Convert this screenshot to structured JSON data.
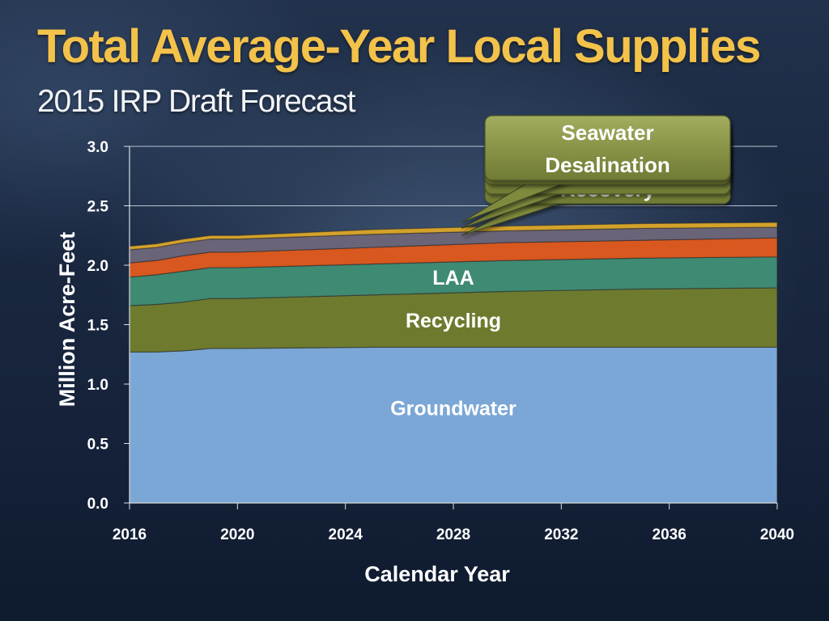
{
  "slide": {
    "title": "Total Average-Year Local Supplies",
    "subtitle": "2015 IRP Draft Forecast"
  },
  "chart_data": {
    "type": "area",
    "stacked": true,
    "xlabel": "Calendar Year",
    "ylabel": "Million Acre-Feet",
    "x": [
      2016,
      2017,
      2018,
      2019,
      2020,
      2025,
      2030,
      2035,
      2040
    ],
    "xticks": [
      "2016",
      "2020",
      "2024",
      "2028",
      "2032",
      "2036",
      "2040"
    ],
    "yticks": [
      "0.0",
      "0.5",
      "1.0",
      "1.5",
      "2.0",
      "2.5",
      "3.0"
    ],
    "ylim": [
      0,
      3.0
    ],
    "grid": true,
    "series": [
      {
        "name": "Groundwater",
        "color": "#7ba7d6",
        "values": [
          1.27,
          1.27,
          1.28,
          1.3,
          1.3,
          1.31,
          1.31,
          1.31,
          1.31
        ]
      },
      {
        "name": "Recycling",
        "color": "#6e7b2e",
        "values": [
          0.39,
          0.4,
          0.41,
          0.42,
          0.42,
          0.44,
          0.47,
          0.49,
          0.5
        ]
      },
      {
        "name": "LAA",
        "color": "#3f8a73",
        "values": [
          0.24,
          0.25,
          0.26,
          0.26,
          0.26,
          0.26,
          0.26,
          0.26,
          0.26
        ]
      },
      {
        "name": "",
        "color": "#d8581f",
        "values": [
          0.12,
          0.12,
          0.13,
          0.13,
          0.13,
          0.14,
          0.15,
          0.15,
          0.16
        ]
      },
      {
        "name": "Recovery",
        "color": "#6a6478",
        "values": [
          0.11,
          0.11,
          0.11,
          0.11,
          0.11,
          0.11,
          0.1,
          0.1,
          0.09
        ]
      },
      {
        "name": "Seawater Desalination",
        "color": "#d4a22b",
        "values": [
          0.03,
          0.03,
          0.03,
          0.03,
          0.03,
          0.04,
          0.04,
          0.04,
          0.04
        ]
      }
    ],
    "band_labels": [
      {
        "text": "Groundwater",
        "series": "Groundwater"
      },
      {
        "text": "Recycling",
        "series": "Recycling"
      },
      {
        "text": "LAA",
        "series": "LAA"
      }
    ],
    "callouts": [
      {
        "lines": [
          "Seawater",
          "Desalination"
        ],
        "partially_hidden_text": "Recovery",
        "color": "#8a9448"
      }
    ]
  }
}
